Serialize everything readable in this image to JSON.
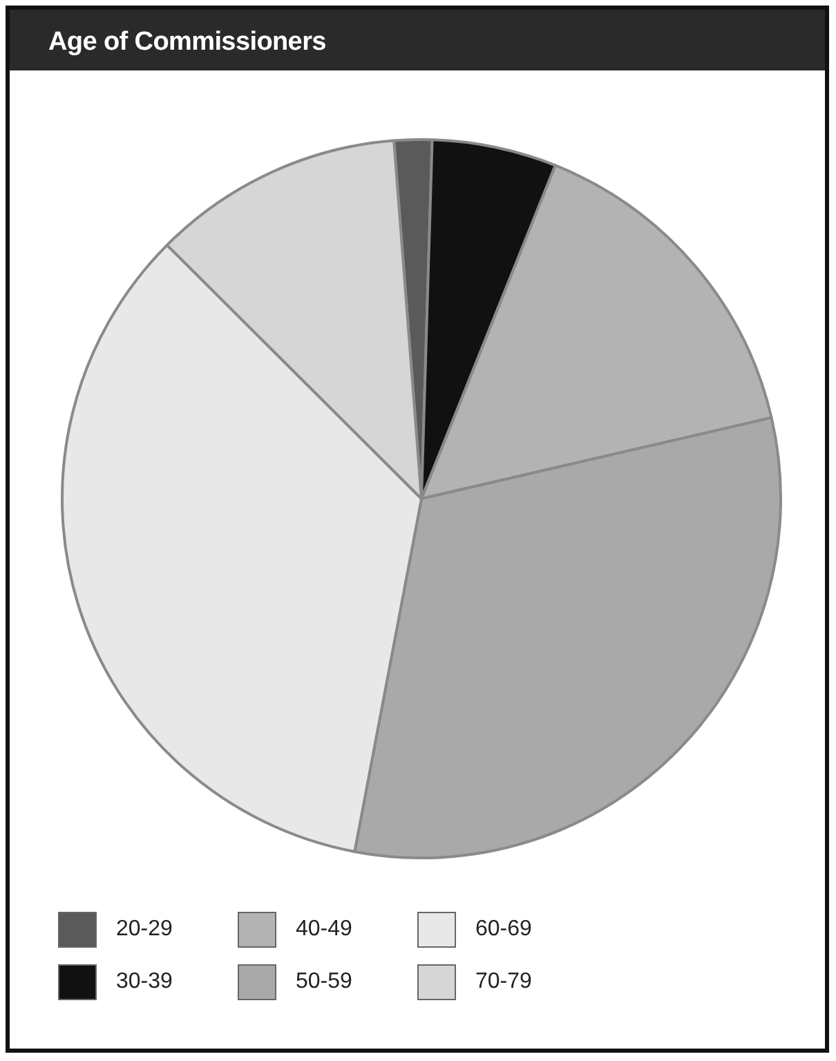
{
  "chart_data": {
    "type": "pie",
    "title": "Age of Commissioners",
    "categories": [
      "20-29",
      "30-39",
      "40-49",
      "50-59",
      "60-69",
      "70-79"
    ],
    "values": [
      1.7,
      5.6,
      15.3,
      31.6,
      34.5,
      11.3
    ],
    "colors": [
      "#5a5a5a",
      "#111111",
      "#b3b3b3",
      "#a9a9a9",
      "#e8e8e8",
      "#d6d6d6"
    ],
    "legend": "bottom"
  }
}
